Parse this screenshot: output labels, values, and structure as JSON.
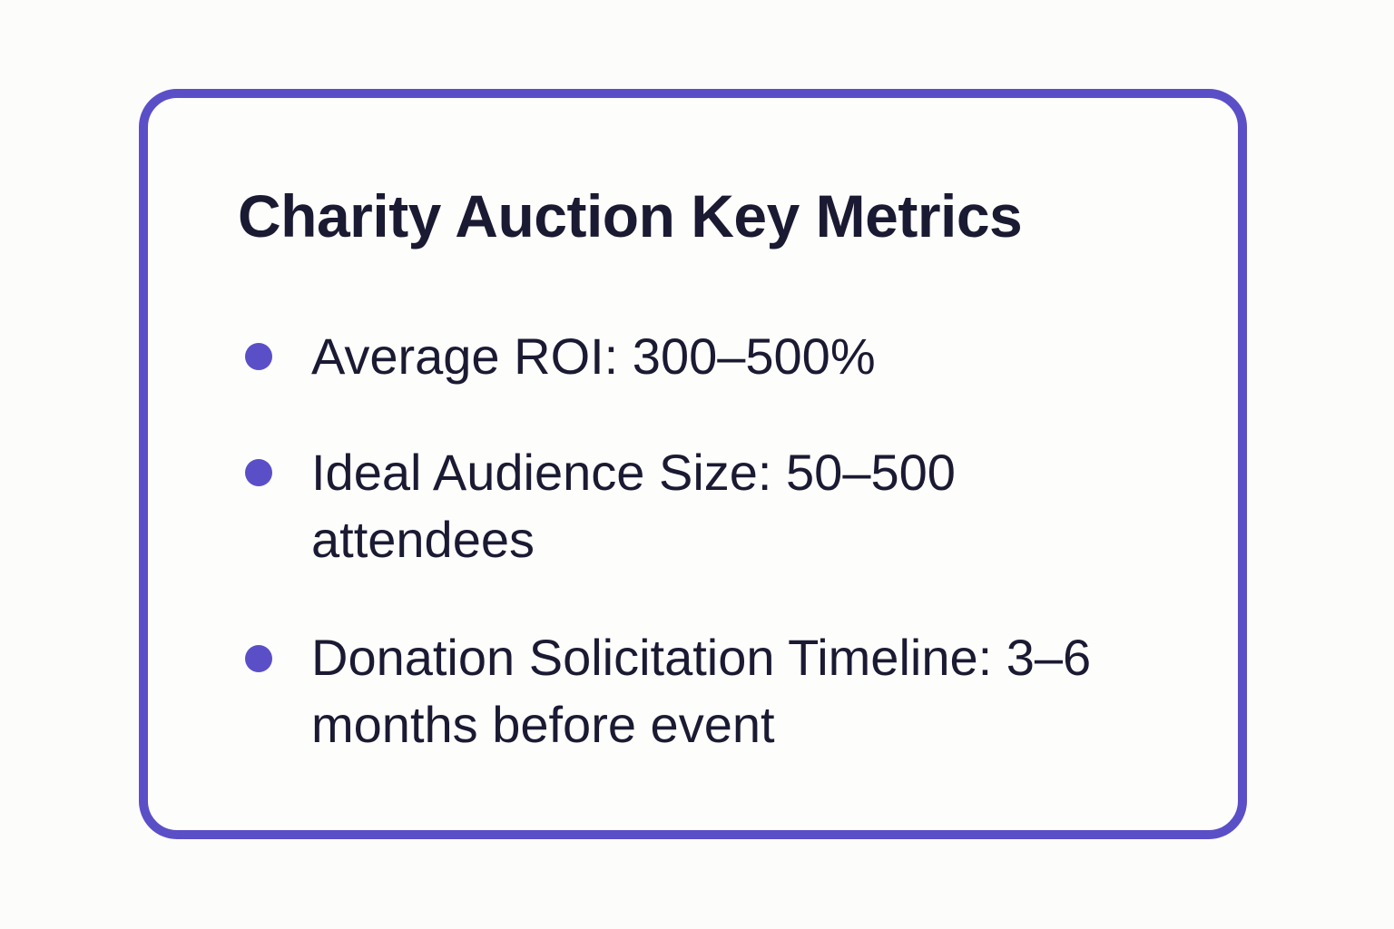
{
  "card": {
    "title": "Charity Auction Key Metrics",
    "items": [
      "Average ROI: 300–500%",
      "Ideal Audience Size: 50–500 attendees",
      "Donation Solicitation Timeline: 3–6 months before event"
    ]
  }
}
